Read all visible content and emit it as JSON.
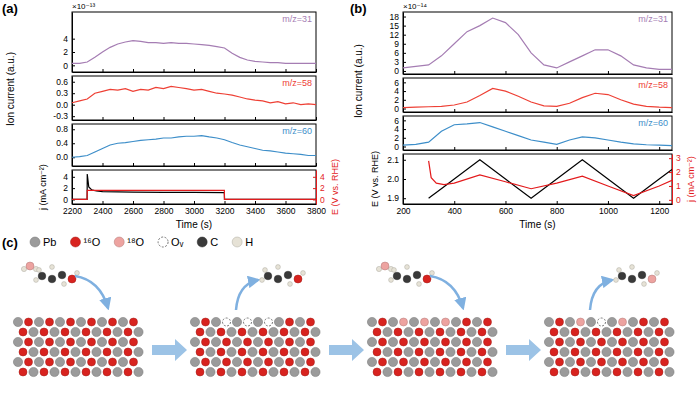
{
  "chart_data": [
    {
      "panel": "(a)",
      "type": "line",
      "xlabel": "Time (s)",
      "ylabel": "Ion current (a.u.)",
      "multiplier": "×10⁻¹³",
      "xlim": [
        2200,
        3800
      ],
      "xticks": [
        2200,
        2400,
        2600,
        2800,
        3000,
        3200,
        3400,
        3600,
        3800
      ],
      "subplots": [
        {
          "x": [
            2200,
            2250,
            2300,
            2350,
            2400,
            2450,
            2500,
            2550,
            2600,
            2650,
            2700,
            2750,
            2800,
            2850,
            2900,
            2950,
            3000,
            3050,
            3100,
            3150,
            3200,
            3250,
            3300,
            3350,
            3400,
            3450,
            3500,
            3550,
            3600,
            3650,
            3700,
            3750,
            3800
          ],
          "ylim": [
            -1,
            8
          ],
          "yticks": [
            0,
            2,
            4
          ],
          "tick_labels": "y",
          "series": [
            {
              "name": "m/z=31",
              "color": "#a57db3",
              "values": [
                0.3,
                0.3,
                0.5,
                1.2,
                2.0,
                2.7,
                3.2,
                3.5,
                3.7,
                3.6,
                3.4,
                3.4,
                3.3,
                3.4,
                3.3,
                3.3,
                3.2,
                3.1,
                3.0,
                2.8,
                2.6,
                1.8,
                1.2,
                0.8,
                0.6,
                0.5,
                0.4,
                0.4,
                0.3,
                0.3,
                0.3,
                0.3,
                0.3
              ]
            }
          ]
        },
        {
          "x": [
            2200,
            2250,
            2300,
            2350,
            2400,
            2450,
            2500,
            2550,
            2600,
            2650,
            2700,
            2750,
            2800,
            2850,
            2900,
            2950,
            3000,
            3050,
            3100,
            3150,
            3200,
            3250,
            3300,
            3350,
            3400,
            3450,
            3500,
            3550,
            3600,
            3650,
            3700,
            3750,
            3800
          ],
          "ylim": [
            -0.4,
            0.75
          ],
          "yticks": [
            -0.3,
            {
              "value": 0,
              "label": "0.0"
            },
            0.3,
            0.6
          ],
          "tick_labels": "y",
          "series": [
            {
              "name": "m/z=58",
              "color": "#ee4035",
              "values": [
                0.05,
                0.1,
                0.15,
                0.3,
                0.35,
                0.4,
                0.38,
                0.42,
                0.35,
                0.4,
                0.38,
                0.45,
                0.42,
                0.48,
                0.45,
                0.42,
                0.38,
                0.4,
                0.35,
                0.3,
                0.28,
                0.25,
                0.2,
                0.15,
                0.12,
                0.1,
                0.05,
                0.08,
                0.02,
                0.05,
                0.0,
                0.02,
                0.0
              ]
            }
          ]
        },
        {
          "x": [
            2200,
            2250,
            2300,
            2350,
            2400,
            2450,
            2500,
            2550,
            2600,
            2650,
            2700,
            2750,
            2800,
            2850,
            2900,
            2950,
            3000,
            3050,
            3100,
            3150,
            3200,
            3250,
            3300,
            3350,
            3400,
            3450,
            3500,
            3550,
            3600,
            3650,
            3700,
            3750,
            3800
          ],
          "ylim": [
            -0.25,
            0.95
          ],
          "yticks": [
            {
              "value": 0,
              "label": "0.0"
            },
            0.4,
            0.8
          ],
          "tick_labels": "y",
          "series": [
            {
              "name": "m/z=60",
              "color": "#3d8ec9",
              "values": [
                0.0,
                0.02,
                0.05,
                0.15,
                0.25,
                0.35,
                0.4,
                0.42,
                0.45,
                0.48,
                0.5,
                0.52,
                0.55,
                0.55,
                0.58,
                0.6,
                0.6,
                0.62,
                0.58,
                0.55,
                0.5,
                0.42,
                0.35,
                0.3,
                0.25,
                0.2,
                0.18,
                0.15,
                0.12,
                0.1,
                0.08,
                0.05,
                0.05
              ]
            }
          ]
        },
        {
          "x": [
            2200,
            2299,
            2300,
            2310,
            2330,
            2360,
            2400,
            2500,
            2600,
            2800,
            3000,
            3199,
            3200,
            3400,
            3600,
            3800
          ],
          "ylabel": "j (mA cm⁻²)",
          "ylim": [
            -0.8,
            5.2
          ],
          "yticks": [
            0,
            2,
            4
          ],
          "y2label": "E (V vs. RHE)",
          "y2lim": [
            -0.8,
            5.2
          ],
          "y2ticks": [
            0,
            2,
            4
          ],
          "series": [
            {
              "color": "#000000",
              "values": [
                0,
                0,
                4.5,
                2.2,
                1.7,
                1.5,
                1.4,
                1.35,
                1.3,
                1.25,
                1.25,
                1.2,
                0,
                0,
                0,
                0
              ]
            },
            {
              "color": "#e31a1c",
              "axis": "y2",
              "values": [
                0,
                0,
                1.6,
                1.6,
                1.6,
                1.6,
                1.6,
                1.6,
                1.6,
                1.6,
                1.6,
                1.6,
                0,
                0,
                0,
                0
              ]
            }
          ]
        }
      ]
    },
    {
      "panel": "(b)",
      "type": "line",
      "xlabel": "Time (s)",
      "ylabel": "Ion current (a.u.)",
      "multiplier": "×10⁻¹⁴",
      "xlim": [
        200,
        1250
      ],
      "xticks": [
        200,
        400,
        600,
        800,
        1000,
        1200
      ],
      "subplots": [
        {
          "x": [
            200,
            250,
            300,
            350,
            400,
            450,
            500,
            550,
            600,
            650,
            700,
            750,
            800,
            850,
            900,
            950,
            1000,
            1050,
            1100,
            1150,
            1200,
            1250
          ],
          "ylim": [
            -1,
            19.5
          ],
          "yticks": [
            0,
            3,
            6,
            9,
            12,
            15,
            18
          ],
          "tick_labels": "y",
          "series": [
            {
              "name": "m/z=31",
              "color": "#a57db3",
              "values": [
                1,
                1.5,
                2,
                5,
                9,
                13,
                15,
                17.5,
                16,
                12,
                6,
                2,
                1,
                3,
                5,
                7,
                7,
                5,
                2,
                1,
                0.5,
                0.5
              ]
            }
          ]
        },
        {
          "x": [
            200,
            250,
            300,
            350,
            400,
            450,
            500,
            550,
            600,
            650,
            700,
            750,
            800,
            850,
            900,
            950,
            1000,
            1050,
            1100,
            1150,
            1200,
            1250
          ],
          "ylim": [
            -0.8,
            7
          ],
          "yticks": [
            0,
            2,
            4,
            6
          ],
          "tick_labels": "y",
          "series": [
            {
              "name": "m/z=58",
              "color": "#ee4035",
              "values": [
                0.2,
                0.3,
                0.4,
                0.5,
                0.8,
                1.5,
                3,
                4.6,
                4,
                2.8,
                1.5,
                0.6,
                0.5,
                1.2,
                2.5,
                3.5,
                3.2,
                2,
                1,
                0.5,
                0.3,
                0.2
              ]
            }
          ]
        },
        {
          "x": [
            200,
            250,
            300,
            350,
            400,
            450,
            500,
            550,
            600,
            650,
            700,
            750,
            800,
            850,
            900,
            950,
            1000,
            1050,
            1100,
            1150,
            1200,
            1250
          ],
          "ylim": [
            -0.8,
            7
          ],
          "yticks": [
            0,
            2,
            4,
            6
          ],
          "tick_labels": "y",
          "series": [
            {
              "name": "m/z=60",
              "color": "#3d8ec9",
              "values": [
                0.3,
                0.5,
                1,
                3.5,
                5,
                5.2,
                5.5,
                4.5,
                3.5,
                2.5,
                1.5,
                1,
                0.5,
                1.5,
                2.2,
                2,
                1.5,
                1,
                0.6,
                0.4,
                0.3,
                0.2
              ]
            }
          ]
        },
        {
          "x": [
            200,
            299,
            300,
            310,
            330,
            360,
            400,
            500,
            600,
            700,
            800,
            900,
            1000,
            1100,
            1200,
            1250
          ],
          "ylabel": "E (V vs. RHE)",
          "ylim": [
            1.87,
            2.13
          ],
          "yticks": [
            1.9,
            {
              "value": 2,
              "label": "2.0"
            },
            2.1
          ],
          "y2label": "j (mA cm⁻²)",
          "y2lim": [
            -0.3,
            3.3
          ],
          "y2ticks": [
            0,
            1,
            2,
            3
          ],
          "series": [
            {
              "color": "#000000",
              "values": [
                null,
                null,
                1.9,
                1.91,
                1.93,
                1.96,
                2.0,
                2.1,
                2.0,
                1.9,
                2.0,
                2.1,
                2.0,
                1.9,
                2.0,
                2.05
              ]
            },
            {
              "color": "#e31a1c",
              "axis": "y2",
              "values": [
                null,
                null,
                2.8,
                1.6,
                1.2,
                1.1,
                1.2,
                1.8,
                1.3,
                0.8,
                1.2,
                1.7,
                1.0,
                0.3,
                1.0,
                1.4
              ]
            }
          ]
        }
      ]
    }
  ],
  "diagram": {
    "label": "(c)",
    "legend": [
      {
        "label": "Pb",
        "color": "#9b9b9b",
        "marker": "circle"
      },
      {
        "label": "¹⁶O",
        "color": "#d8231f",
        "marker": "circle"
      },
      {
        "label": "¹⁸O",
        "color": "#eda3a0",
        "marker": "circle"
      },
      {
        "label": "Oᵥ",
        "color": "#555555",
        "marker": "dashed-circle"
      },
      {
        "label": "C",
        "color": "#3a3a3a",
        "marker": "circle"
      },
      {
        "label": "H",
        "color": "#e6e2d6",
        "marker": "circle"
      }
    ]
  }
}
